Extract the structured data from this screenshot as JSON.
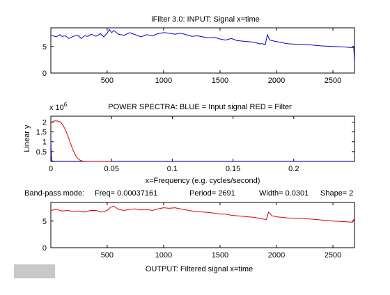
{
  "colors": {
    "blue": "#0000cc",
    "red": "#dd0000",
    "button": "#c8c8c8"
  },
  "labels": {
    "x10": "x 10",
    "exp": "6",
    "status_mode": "Band-pass mode:",
    "status_freq": "Freq= 0.00037161",
    "status_period": "Period= 2691",
    "status_width": "Width= 0.0301",
    "status_shape": "Shape=  2"
  },
  "chart_data": [
    {
      "type": "line",
      "title": "iFilter 3.0: INPUT: Signal     x=time",
      "xlabel": "",
      "ylabel": "",
      "xlim": [
        1,
        2691
      ],
      "ylim": [
        0,
        8.5
      ],
      "xticks": [
        500,
        1000,
        1500,
        2000,
        2500
      ],
      "yticks": [
        0,
        5
      ],
      "grid": false,
      "series": [
        {
          "color": "#0000cc",
          "x": [
            1,
            50,
            80,
            100,
            130,
            160,
            200,
            240,
            270,
            300,
            330,
            360,
            400,
            440,
            470,
            500,
            520,
            540,
            560,
            600,
            650,
            700,
            750,
            800,
            850,
            900,
            950,
            1000,
            1050,
            1100,
            1150,
            1200,
            1250,
            1300,
            1350,
            1400,
            1450,
            1500,
            1550,
            1600,
            1650,
            1700,
            1750,
            1800,
            1850,
            1880,
            1900,
            1920,
            1940,
            1980,
            2050,
            2100,
            2200,
            2300,
            2400,
            2500,
            2600,
            2650,
            2685,
            2691
          ],
          "y": [
            7.1,
            6.8,
            7.2,
            6.9,
            7.0,
            6.5,
            6.9,
            7.1,
            6.5,
            7.0,
            6.9,
            7.3,
            6.9,
            7.4,
            6.8,
            7.5,
            8.2,
            7.6,
            8.0,
            7.3,
            7.1,
            7.6,
            7.2,
            6.8,
            7.2,
            7.0,
            7.4,
            7.6,
            7.5,
            7.3,
            7.5,
            7.2,
            6.9,
            7.0,
            6.8,
            6.6,
            6.7,
            6.4,
            6.2,
            6.5,
            6.1,
            6.0,
            5.9,
            5.8,
            5.5,
            5.5,
            5.3,
            7.2,
            6.2,
            6.0,
            5.7,
            5.5,
            5.4,
            5.3,
            5.1,
            5.0,
            4.9,
            4.8,
            4.8,
            2.0
          ]
        }
      ]
    },
    {
      "type": "line",
      "title": "POWER SPECTRA:  BLUE = Input signal    RED = Filter",
      "xlabel": "x=Frequency (e.g. cycles/second)",
      "ylabel": "Linear y",
      "xlim": [
        0,
        0.25
      ],
      "ylim": [
        0,
        2.3
      ],
      "xticks": [
        0,
        0.05,
        0.1,
        0.15,
        0.2
      ],
      "yticks": [
        0.5,
        1,
        1.5,
        2
      ],
      "grid": false,
      "series": [
        {
          "name": "Input signal",
          "color": "#0000cc",
          "x": [
            0,
            0.0004,
            0.0008,
            0.0015,
            0.003,
            0.01,
            0.05,
            0.1,
            0.15,
            0.2,
            0.25
          ],
          "y": [
            1.05,
            0.3,
            0.05,
            0.02,
            0.01,
            0.005,
            0.003,
            0.002,
            0.002,
            0.002,
            0.002
          ]
        },
        {
          "name": "Filter",
          "color": "#dd0000",
          "x": [
            0,
            0.002,
            0.004,
            0.006,
            0.008,
            0.01,
            0.012,
            0.014,
            0.016,
            0.018,
            0.02,
            0.022,
            0.024,
            0.026,
            0.028,
            0.03,
            0.035,
            0.05
          ],
          "y": [
            1.95,
            2.05,
            2.06,
            2.05,
            2.0,
            1.85,
            1.6,
            1.3,
            0.95,
            0.62,
            0.35,
            0.16,
            0.06,
            0.02,
            0.005,
            0.0,
            0.0,
            0.0
          ]
        }
      ]
    },
    {
      "type": "line",
      "title": "OUTPUT: Filtered signal    x=time",
      "xlabel": "",
      "ylabel": "",
      "xlim": [
        1,
        2691
      ],
      "ylim": [
        0,
        8.5
      ],
      "xticks": [
        500,
        1000,
        1500,
        2000,
        2500
      ],
      "yticks": [
        0,
        5
      ],
      "grid": false,
      "series": [
        {
          "color": "#dd0000",
          "x": [
            1,
            50,
            100,
            150,
            200,
            250,
            300,
            350,
            400,
            450,
            500,
            530,
            560,
            600,
            650,
            700,
            750,
            800,
            850,
            900,
            950,
            1000,
            1050,
            1100,
            1150,
            1200,
            1250,
            1300,
            1350,
            1400,
            1450,
            1500,
            1550,
            1600,
            1650,
            1700,
            1750,
            1800,
            1850,
            1880,
            1910,
            1930,
            1960,
            2000,
            2100,
            2200,
            2300,
            2400,
            2500,
            2600,
            2650,
            2675,
            2691
          ],
          "y": [
            7.0,
            7.2,
            6.9,
            7.0,
            6.8,
            6.9,
            6.7,
            7.0,
            7.0,
            6.7,
            7.0,
            7.6,
            7.8,
            7.2,
            7.0,
            7.2,
            7.3,
            7.1,
            7.2,
            7.0,
            7.3,
            7.5,
            7.4,
            7.5,
            7.3,
            7.1,
            6.9,
            6.8,
            6.7,
            6.6,
            6.5,
            6.3,
            6.3,
            6.1,
            6.0,
            5.9,
            5.8,
            5.7,
            5.5,
            5.4,
            5.3,
            6.7,
            6.0,
            5.8,
            5.6,
            5.5,
            5.4,
            5.2,
            5.0,
            4.9,
            4.8,
            4.8,
            5.6
          ]
        }
      ]
    }
  ]
}
